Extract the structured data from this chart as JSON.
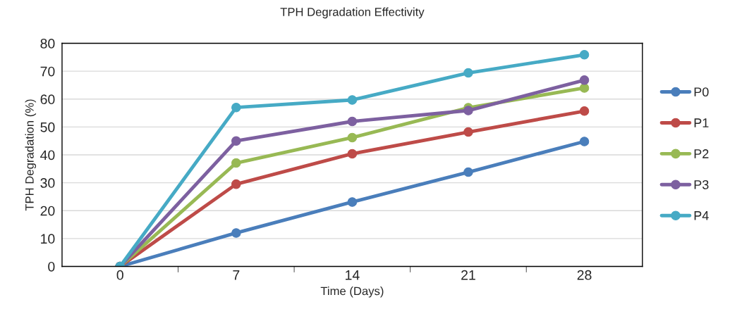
{
  "chart_data": {
    "type": "line",
    "title": "TPH Degradation Effectivity",
    "xlabel": "Time (Days)",
    "ylabel": "TPH Degradation (%)",
    "categories": [
      "0",
      "7",
      "14",
      "21",
      "28"
    ],
    "series": [
      {
        "name": "P0",
        "color": "#4a7ebb",
        "values": [
          0,
          12,
          23.1,
          33.8,
          44.8
        ]
      },
      {
        "name": "P1",
        "color": "#be4b48",
        "values": [
          0,
          29.5,
          40.4,
          48.2,
          55.7
        ]
      },
      {
        "name": "P2",
        "color": "#98b954",
        "values": [
          0,
          37.1,
          46.2,
          56.9,
          64
        ]
      },
      {
        "name": "P3",
        "color": "#7d60a0",
        "values": [
          0,
          45,
          52,
          55.9,
          66.8
        ]
      },
      {
        "name": "P4",
        "color": "#46aac5",
        "values": [
          0,
          57,
          59.7,
          69.4,
          75.9
        ]
      }
    ],
    "ylim": [
      0,
      80
    ],
    "yticks": [
      0,
      10,
      20,
      30,
      40,
      50,
      60,
      70,
      80
    ],
    "grid": "y",
    "legend": "right",
    "marker": "circle",
    "line_style": "solid"
  }
}
